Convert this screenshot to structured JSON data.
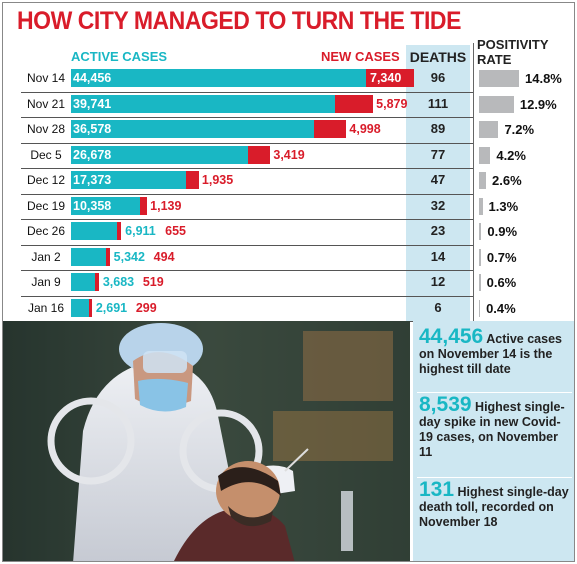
{
  "title": "HOW CITY MANAGED TO TURN THE TIDE",
  "headers": {
    "active": "ACTIVE CASES",
    "new": "NEW CASES",
    "deaths": "DEATHS",
    "positivity_line1": "POSITIVITY",
    "positivity_line2": "RATE"
  },
  "colors": {
    "title": "#d91c2a",
    "active": "#19b7c4",
    "new": "#d91c2a",
    "deaths_bg": "#cde7f1",
    "positivity_bar": "#b8b9bb"
  },
  "chart_data": {
    "type": "bar",
    "categories": [
      "Nov 14",
      "Nov 21",
      "Nov 28",
      "Dec 5",
      "Dec 12",
      "Dec 19",
      "Dec 26",
      "Jan 2",
      "Jan 9",
      "Jan 16"
    ],
    "series": [
      {
        "name": "ACTIVE CASES",
        "values": [
          44456,
          39741,
          36578,
          26678,
          17373,
          10358,
          6911,
          5342,
          3683,
          2691
        ],
        "labels": [
          "44,456",
          "39,741",
          "36,578",
          "26,678",
          "17,373",
          "10,358",
          "6,911",
          "5,342",
          "3,683",
          "2,691"
        ]
      },
      {
        "name": "NEW CASES",
        "values": [
          7340,
          5879,
          4998,
          3419,
          1935,
          1139,
          655,
          494,
          519,
          299
        ],
        "labels": [
          "7,340",
          "5,879",
          "4,998",
          "3,419",
          "1,935",
          "1,139",
          "655",
          "494",
          "519",
          "299"
        ]
      },
      {
        "name": "DEATHS",
        "values": [
          96,
          111,
          89,
          77,
          47,
          32,
          23,
          14,
          12,
          6
        ],
        "labels": [
          "96",
          "111",
          "89",
          "77",
          "47",
          "32",
          "23",
          "14",
          "12",
          "6"
        ]
      },
      {
        "name": "POSITIVITY RATE",
        "values": [
          14.8,
          12.9,
          7.2,
          4.2,
          2.6,
          1.3,
          0.9,
          0.7,
          0.6,
          0.4
        ],
        "labels": [
          "14.8%",
          "12.9%",
          "7.2%",
          "4.2%",
          "2.6%",
          "1.3%",
          "0.9%",
          "0.7%",
          "0.6%",
          "0.4%"
        ]
      }
    ]
  },
  "facts": [
    {
      "big": "44,456",
      "text": " Active cases on November 14 is the highest till date"
    },
    {
      "big": "8,539",
      "text": " Highest single-day spike in new Covid-19 cases, on November 11"
    },
    {
      "big": "131",
      "text": " Highest single-day death toll, recorded on November 18"
    }
  ]
}
